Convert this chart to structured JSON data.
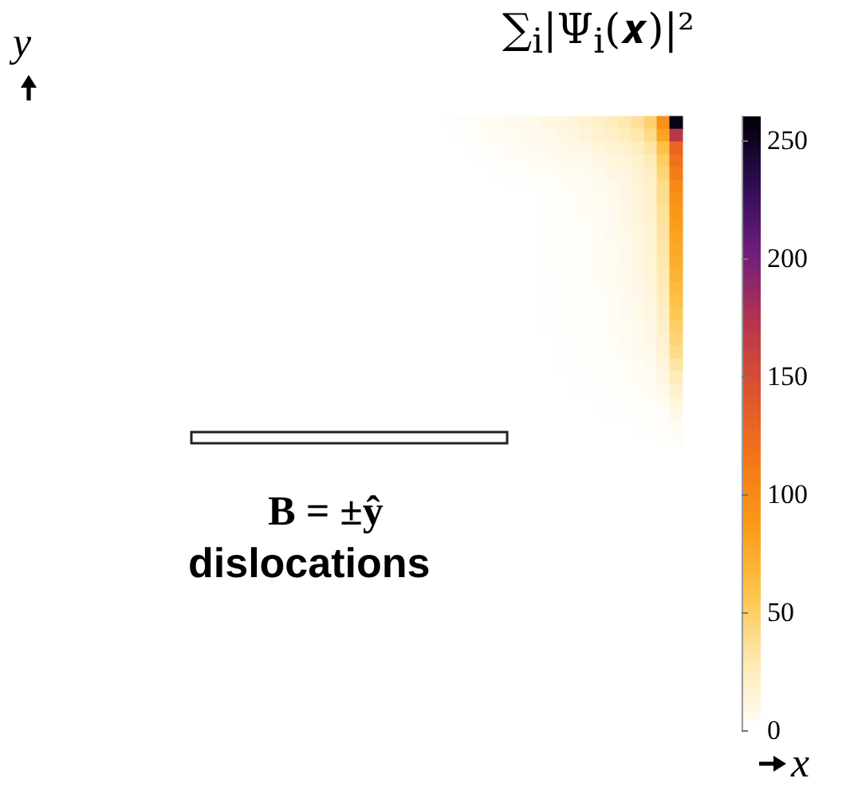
{
  "chart_data": {
    "type": "heatmap",
    "title": "∑$_{i}$|Ψ$_{i}$(𝒙)|²",
    "annotations": [
      "B =  ±ŷ",
      "dislocations",
      "y",
      "x"
    ],
    "categories": [
      null,
      null,
      null,
      null,
      null,
      null,
      null,
      null,
      null,
      null,
      null,
      null,
      null,
      null,
      null,
      null,
      null,
      null,
      null,
      null
    ],
    "y_categories": [
      null,
      null,
      null,
      null,
      null,
      null,
      null,
      null,
      null,
      null,
      null,
      null,
      null,
      null,
      null,
      null,
      null,
      null,
      null,
      null,
      null,
      null,
      null,
      null,
      null,
      null
    ],
    "cells": [
      [
        0,
        1,
        2,
        3,
        4,
        5,
        6,
        7,
        8,
        10,
        12,
        14,
        17,
        20,
        24,
        29,
        36,
        48,
        95,
        255
      ],
      [
        0,
        0,
        1,
        2,
        3,
        4,
        5,
        6,
        7,
        8,
        10,
        12,
        14,
        17,
        20,
        24,
        30,
        40,
        80,
        170
      ],
      [
        0,
        0,
        0,
        1,
        2,
        3,
        4,
        5,
        6,
        7,
        8,
        9,
        11,
        13,
        16,
        19,
        24,
        32,
        60,
        130
      ],
      [
        0,
        0,
        0,
        0,
        1,
        2,
        3,
        3,
        4,
        5,
        6,
        7,
        8,
        10,
        12,
        15,
        19,
        26,
        50,
        120
      ],
      [
        0,
        0,
        0,
        0,
        0,
        1,
        1,
        2,
        3,
        3,
        4,
        5,
        6,
        8,
        10,
        12,
        16,
        22,
        45,
        110
      ],
      [
        0,
        0,
        0,
        0,
        0,
        0,
        1,
        1,
        2,
        2,
        3,
        4,
        5,
        6,
        8,
        10,
        14,
        20,
        40,
        100
      ],
      [
        0,
        0,
        0,
        0,
        0,
        0,
        0,
        0,
        0,
        1,
        2,
        3,
        4,
        5,
        7,
        10,
        13,
        19,
        38,
        95
      ],
      [
        0,
        0,
        0,
        0,
        0,
        0,
        0,
        0,
        0,
        1,
        2,
        3,
        4,
        5,
        6,
        9,
        13,
        18,
        36,
        90
      ],
      [
        0,
        0,
        0,
        0,
        0,
        0,
        0,
        0,
        0,
        1,
        2,
        3,
        3,
        4,
        6,
        9,
        12,
        17,
        34,
        85
      ],
      [
        0,
        0,
        0,
        0,
        0,
        0,
        0,
        0,
        0,
        1,
        2,
        2,
        3,
        4,
        6,
        8,
        11,
        16,
        32,
        80
      ],
      [
        0,
        0,
        0,
        0,
        0,
        0,
        0,
        0,
        0,
        1,
        2,
        2,
        3,
        4,
        5,
        8,
        11,
        16,
        31,
        78
      ],
      [
        0,
        0,
        0,
        0,
        0,
        0,
        0,
        0,
        0,
        1,
        2,
        2,
        3,
        4,
        5,
        8,
        11,
        15,
        30,
        75
      ],
      [
        0,
        0,
        0,
        0,
        0,
        0,
        0,
        0,
        0,
        1,
        1,
        2,
        3,
        4,
        5,
        7,
        10,
        14,
        28,
        70
      ],
      [
        0,
        0,
        0,
        0,
        0,
        0,
        0,
        0,
        0,
        1,
        1,
        2,
        3,
        3,
        5,
        7,
        9,
        13,
        26,
        65
      ],
      [
        0,
        0,
        0,
        0,
        0,
        0,
        0,
        0,
        0,
        1,
        1,
        2,
        2,
        3,
        4,
        6,
        8,
        12,
        24,
        60
      ],
      [
        0,
        0,
        0,
        0,
        0,
        0,
        0,
        0,
        0,
        1,
        1,
        2,
        2,
        3,
        4,
        6,
        8,
        11,
        22,
        55
      ],
      [
        0,
        0,
        0,
        0,
        0,
        0,
        0,
        0,
        0,
        1,
        1,
        2,
        2,
        3,
        4,
        5,
        7,
        10,
        20,
        50
      ],
      [
        0,
        0,
        0,
        0,
        0,
        0,
        0,
        0,
        0,
        0,
        1,
        1,
        2,
        2,
        3,
        5,
        6,
        9,
        18,
        45
      ],
      [
        0,
        0,
        0,
        0,
        0,
        0,
        0,
        0,
        0,
        0,
        1,
        1,
        2,
        2,
        3,
        4,
        6,
        8,
        16,
        40
      ],
      [
        0,
        0,
        0,
        0,
        0,
        0,
        0,
        0,
        0,
        0,
        1,
        1,
        1,
        2,
        2,
        3,
        4,
        6,
        13,
        32
      ],
      [
        0,
        0,
        0,
        0,
        0,
        0,
        0,
        0,
        0,
        0,
        0,
        1,
        1,
        1,
        2,
        3,
        4,
        5,
        10,
        25
      ],
      [
        0,
        0,
        0,
        0,
        0,
        0,
        0,
        0,
        0,
        0,
        0,
        1,
        1,
        1,
        1,
        2,
        3,
        4,
        7,
        18
      ],
      [
        0,
        0,
        0,
        0,
        0,
        0,
        0,
        0,
        0,
        0,
        0,
        0,
        0,
        1,
        1,
        1,
        2,
        2,
        5,
        12
      ],
      [
        0,
        0,
        0,
        0,
        0,
        0,
        0,
        0,
        0,
        0,
        0,
        0,
        0,
        0,
        1,
        1,
        1,
        2,
        3,
        8
      ],
      [
        0,
        0,
        0,
        0,
        0,
        0,
        0,
        0,
        0,
        0,
        0,
        0,
        0,
        0,
        0,
        0,
        1,
        1,
        2,
        4
      ],
      [
        0,
        0,
        0,
        0,
        0,
        0,
        0,
        0,
        0,
        0,
        0,
        0,
        0,
        0,
        0,
        0,
        0,
        0,
        1,
        2
      ]
    ],
    "clim": [
      0,
      260
    ],
    "cticks": [
      0,
      50,
      100,
      150,
      200,
      250
    ]
  }
}
